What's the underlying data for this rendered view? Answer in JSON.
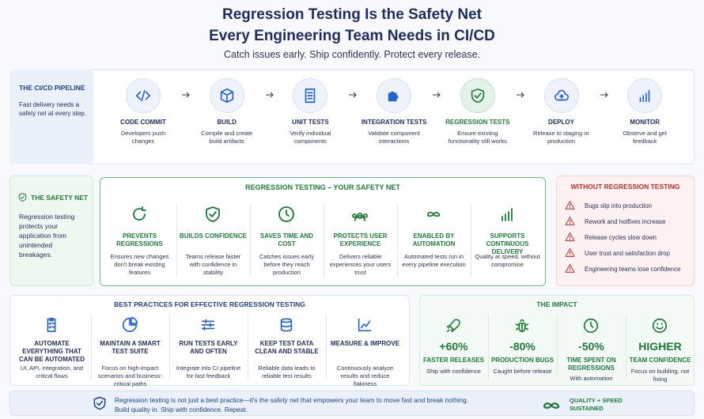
{
  "header": {
    "title_line1": "Regression Testing Is the Safety Net",
    "title_line2": "Every Engineering Team Needs in CI/CD",
    "subtitle": "Catch issues early. Ship confidently. Protect every release."
  },
  "pipeline": {
    "label": "THE CI/CD PIPELINE",
    "description": "Fast delivery needs a safety net at every step.",
    "stages": [
      {
        "name": "CODE COMMIT",
        "description": "Developers push changes"
      },
      {
        "name": "BUILD",
        "description": "Compile and create build artifacts"
      },
      {
        "name": "UNIT TESTS",
        "description": "Verify individual components"
      },
      {
        "name": "INTEGRATION TESTS",
        "description": "Validate component interactions"
      },
      {
        "name": "REGRESSION TESTS",
        "description": "Ensure existing functionality still works"
      },
      {
        "name": "DEPLOY",
        "description": "Release to staging or production"
      },
      {
        "name": "MONITOR",
        "description": "Observe and get feedback"
      }
    ]
  },
  "safety_net": {
    "label": "THE SAFETY NET",
    "description": "Regression testing protects your application from unintended breakages.",
    "title": "REGRESSION TESTING – YOUR SAFETY NET",
    "items": [
      {
        "title": "PREVENTS REGRESSIONS",
        "description": "Ensures new changes don't break existing features"
      },
      {
        "title": "BUILDS CONFIDENCE",
        "description": "Teams release faster with confidence in stability"
      },
      {
        "title": "SAVES TIME AND COST",
        "description": "Catches issues early before they reach production"
      },
      {
        "title": "PROTECTS USER EXPERIENCE",
        "description": "Delivers reliable experiences your users trust"
      },
      {
        "title": "ENABLED BY AUTOMATION",
        "description": "Automated tests run in every pipeline execution"
      },
      {
        "title": "SUPPORTS CONTINUOUS DELIVERY",
        "description": "Quality at speed, without compromise"
      }
    ]
  },
  "without": {
    "title": "WITHOUT REGRESSION TESTING",
    "items": [
      "Bugs slip into production",
      "Rework and hotfixes increase",
      "Release cycles slow down",
      "User trust and satisfaction drop",
      "Engineering teams lose confidence"
    ]
  },
  "best_practices": {
    "title": "BEST PRACTICES FOR EFFECTIVE REGRESSION TESTING",
    "items": [
      {
        "title": "AUTOMATE EVERYTHING THAT CAN BE AUTOMATED",
        "description": "UI, API, integration, and critical flows"
      },
      {
        "title": "MAINTAIN A SMART TEST SUITE",
        "description": "Focus on high-impact scenarios and business-critical paths"
      },
      {
        "title": "RUN TESTS EARLY AND OFTEN",
        "description": "Integrate into CI pipeline for fast feedback"
      },
      {
        "title": "KEEP TEST DATA CLEAN AND STABLE",
        "description": "Reliable data leads to reliable test results"
      },
      {
        "title": "MEASURE & IMPROVE",
        "description": "Continuously analyze results and reduce flakiness"
      }
    ]
  },
  "impact": {
    "title": "THE IMPACT",
    "items": [
      {
        "value": "+60%",
        "label": "FASTER RELEASES",
        "description": "Ship with confidence"
      },
      {
        "value": "-80%",
        "label": "PRODUCTION BUGS",
        "description": "Caught before release"
      },
      {
        "value": "-50%",
        "label": "TIME SPENT ON REGRESSIONS",
        "description": "With automation"
      },
      {
        "value": "HIGHER",
        "label": "TEAM CONFIDENCE",
        "description": "Focus on building, not fixing"
      }
    ]
  },
  "footer": {
    "line1": "Regression testing is not just a best practice—it's the safety net that empowers your team to move fast and break nothing.",
    "line2": "Build quality in. Ship with confidence. Repeat.",
    "badge": "QUALITY + SPEED SUSTAINED"
  }
}
